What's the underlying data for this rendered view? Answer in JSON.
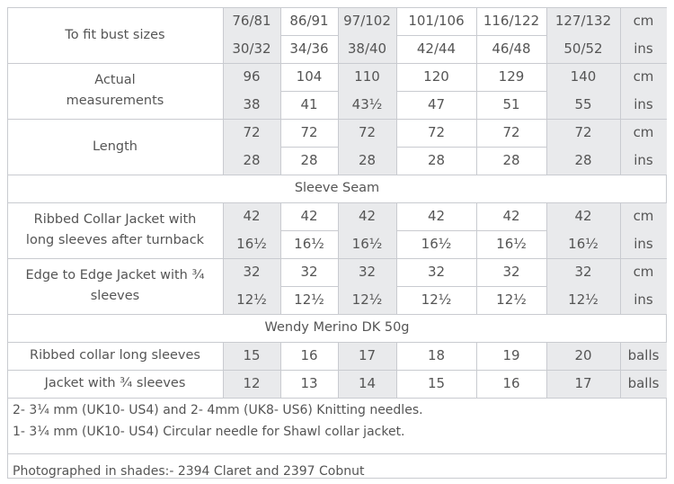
{
  "size_columns": [
    "76/81",
    "86/91",
    "97/102",
    "101/106",
    "116/122",
    "127/132"
  ],
  "rows": [
    {
      "type": "group",
      "label": [
        "To fit bust sizes"
      ],
      "sub": [
        {
          "values": [
            "76/81",
            "86/91",
            "97/102",
            "101/106",
            "116/122",
            "127/132"
          ],
          "unit": "cm"
        },
        {
          "values": [
            "30/32",
            "34/36",
            "38/40",
            "42/44",
            "46/48",
            "50/52"
          ],
          "unit": "ins"
        }
      ]
    },
    {
      "type": "group",
      "label": [
        "Actual",
        "measurements"
      ],
      "sub": [
        {
          "values": [
            "96",
            "104",
            "110",
            "120",
            "129",
            "140"
          ],
          "unit": "cm"
        },
        {
          "values": [
            "38",
            "41",
            "43½",
            "47",
            "51",
            "55"
          ],
          "unit": "ins"
        }
      ]
    },
    {
      "type": "group",
      "label": [
        "Length"
      ],
      "sub": [
        {
          "values": [
            "72",
            "72",
            "72",
            "72",
            "72",
            "72"
          ],
          "unit": "cm"
        },
        {
          "values": [
            "28",
            "28",
            "28",
            "28",
            "28",
            "28"
          ],
          "unit": "ins"
        }
      ]
    },
    {
      "type": "span",
      "label": "Sleeve Seam"
    },
    {
      "type": "group",
      "label": [
        "Ribbed Collar Jacket with",
        "long sleeves after turnback"
      ],
      "sub": [
        {
          "values": [
            "42",
            "42",
            "42",
            "42",
            "42",
            "42"
          ],
          "unit": "cm"
        },
        {
          "values": [
            "16½",
            "16½",
            "16½",
            "16½",
            "16½",
            "16½"
          ],
          "unit": "ins"
        }
      ]
    },
    {
      "type": "group",
      "label": [
        "Edge to Edge Jacket with ¾",
        "sleeves"
      ],
      "sub": [
        {
          "values": [
            "32",
            "32",
            "32",
            "32",
            "32",
            "32"
          ],
          "unit": "cm"
        },
        {
          "values": [
            "12½",
            "12½",
            "12½",
            "12½",
            "12½",
            "12½"
          ],
          "unit": "ins"
        }
      ]
    },
    {
      "type": "span",
      "label": "Wendy Merino DK 50g"
    },
    {
      "type": "group",
      "label": [
        "Ribbed collar long sleeves"
      ],
      "sub": [
        {
          "values": [
            "15",
            "16",
            "17",
            "18",
            "19",
            "20"
          ],
          "unit": "balls"
        }
      ]
    },
    {
      "type": "group",
      "label": [
        "Jacket with ¾ sleeves"
      ],
      "sub": [
        {
          "values": [
            "12",
            "13",
            "14",
            "15",
            "16",
            "17"
          ],
          "unit": "balls"
        }
      ]
    }
  ],
  "needles": [
    "2- 3¼ mm (UK10- US4) and 2- 4mm (UK8- US6) Knitting needles.",
    "1- 3¼ mm (UK10- US4) Circular needle for Shawl collar jacket."
  ],
  "photographed": "Photographed in shades:- 2394 Claret and 2397 Cobnut"
}
